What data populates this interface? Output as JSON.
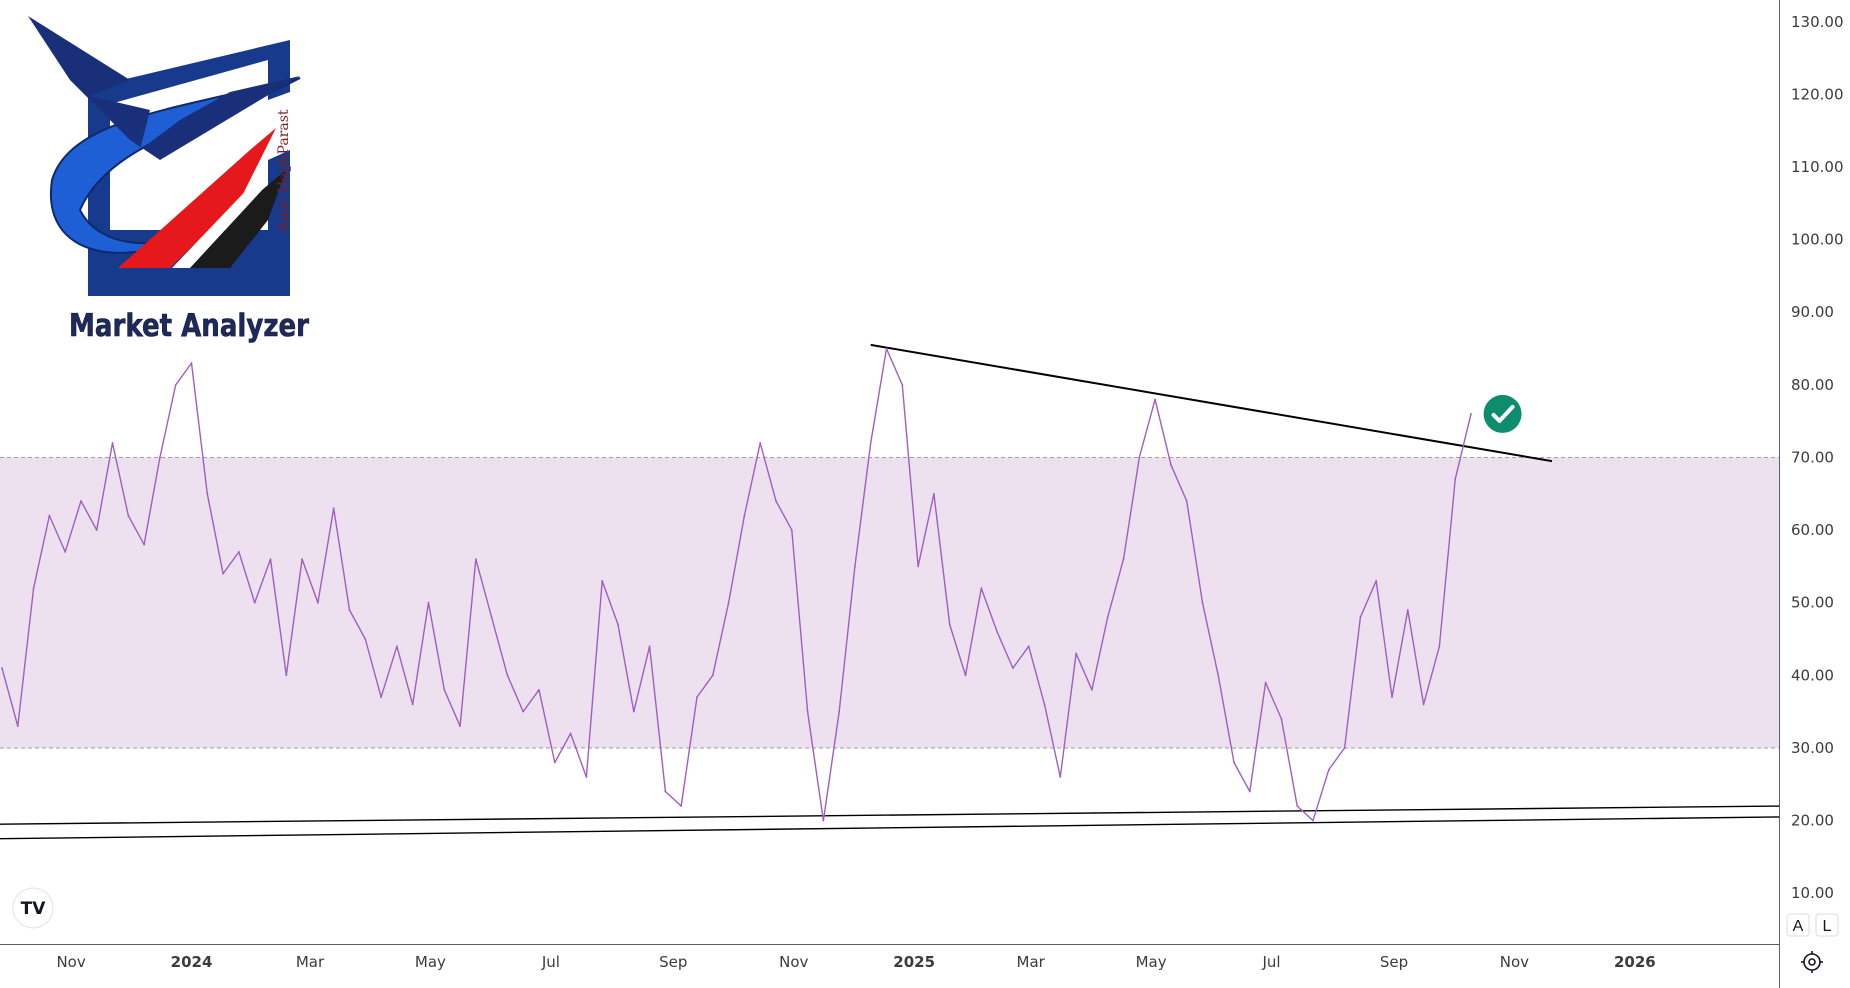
{
  "logo": {
    "title": "Market Analyzer",
    "signature": "Amir HaghParast"
  },
  "brand_mark": "TV",
  "scale_buttons": {
    "auto": "A",
    "log": "L"
  },
  "colors": {
    "rsi_line": "#a05fbf",
    "band_fill": "#ede0ef",
    "band_border": "#9e9e9e",
    "trendline": "#000000",
    "check_badge": "#0e8c6e",
    "axis_text": "#3b3b3b"
  },
  "icons": {
    "check_badge": "check-circle-icon",
    "settings": "gear-icon"
  },
  "chart_data": {
    "type": "line",
    "series": [
      {
        "x": [
          "2023-09-27",
          "2023-10-05",
          "2023-10-13",
          "2023-10-21",
          "2023-10-29",
          "2023-11-06",
          "2023-11-14",
          "2023-11-22",
          "2023-11-30",
          "2023-12-08",
          "2023-12-16",
          "2023-12-24",
          "2024-01-01",
          "2024-01-09",
          "2024-01-17",
          "2024-01-25",
          "2024-02-02",
          "2024-02-10",
          "2024-02-18",
          "2024-02-26",
          "2024-03-05",
          "2024-03-13",
          "2024-03-21",
          "2024-03-29",
          "2024-04-06",
          "2024-04-14",
          "2024-04-22",
          "2024-04-30",
          "2024-05-08",
          "2024-05-16",
          "2024-05-24",
          "2024-06-01",
          "2024-06-09",
          "2024-06-17",
          "2024-06-25",
          "2024-07-03",
          "2024-07-11",
          "2024-07-19",
          "2024-07-27",
          "2024-08-04",
          "2024-08-12",
          "2024-08-20",
          "2024-08-28",
          "2024-09-05",
          "2024-09-13",
          "2024-09-21",
          "2024-09-29",
          "2024-10-07",
          "2024-10-15",
          "2024-10-23",
          "2024-10-31",
          "2024-11-08",
          "2024-11-16",
          "2024-11-24",
          "2024-12-02",
          "2024-12-10",
          "2024-12-18",
          "2024-12-26",
          "2025-01-03",
          "2025-01-11",
          "2025-01-19",
          "2025-01-27",
          "2025-02-04",
          "2025-02-12",
          "2025-02-20",
          "2025-02-28",
          "2025-03-08",
          "2025-03-16",
          "2025-03-24",
          "2025-04-01",
          "2025-04-09",
          "2025-04-17",
          "2025-04-25",
          "2025-05-03",
          "2025-05-11",
          "2025-05-19",
          "2025-05-27",
          "2025-06-04",
          "2025-06-12",
          "2025-06-20",
          "2025-06-28",
          "2025-07-06",
          "2025-07-14",
          "2025-07-22",
          "2025-07-30",
          "2025-08-07",
          "2025-08-15",
          "2025-08-23",
          "2025-08-31",
          "2025-09-08",
          "2025-09-16",
          "2025-09-24",
          "2025-10-02",
          "2025-10-10"
        ],
        "values": [
          41,
          33,
          52,
          62,
          57,
          64,
          60,
          72,
          62,
          58,
          70,
          80,
          83,
          65,
          54,
          57,
          50,
          56,
          40,
          56,
          50,
          63,
          49,
          45,
          37,
          44,
          36,
          50,
          38,
          33,
          56,
          48,
          40,
          35,
          38,
          28,
          32,
          26,
          53,
          47,
          35,
          44,
          24,
          22,
          37,
          40,
          50,
          62,
          72,
          64,
          60,
          35,
          20,
          35,
          55,
          72,
          85,
          80,
          55,
          65,
          47,
          40,
          52,
          46,
          41,
          44,
          36,
          26,
          43,
          38,
          48,
          56,
          70,
          78,
          69,
          64,
          50,
          40,
          28,
          24,
          39,
          34,
          22,
          20,
          27,
          30,
          48,
          53,
          37,
          49,
          36,
          44,
          67,
          76
        ]
      }
    ],
    "y_ticks": [
      "10.00",
      "20.00",
      "30.00",
      "40.00",
      "50.00",
      "60.00",
      "70.00",
      "80.00",
      "90.00",
      "100.00",
      "110.00",
      "120.00",
      "130.00"
    ],
    "x_ticks": [
      {
        "label": "Nov",
        "date": "2023-11-01",
        "bold": false
      },
      {
        "label": "2024",
        "date": "2024-01-01",
        "bold": true
      },
      {
        "label": "Mar",
        "date": "2024-03-01",
        "bold": false
      },
      {
        "label": "May",
        "date": "2024-05-01",
        "bold": false
      },
      {
        "label": "Jul",
        "date": "2024-07-01",
        "bold": false
      },
      {
        "label": "Sep",
        "date": "2024-09-01",
        "bold": false
      },
      {
        "label": "Nov",
        "date": "2024-11-01",
        "bold": false
      },
      {
        "label": "2025",
        "date": "2025-01-01",
        "bold": true
      },
      {
        "label": "Mar",
        "date": "2025-03-01",
        "bold": false
      },
      {
        "label": "May",
        "date": "2025-05-01",
        "bold": false
      },
      {
        "label": "Jul",
        "date": "2025-07-01",
        "bold": false
      },
      {
        "label": "Sep",
        "date": "2025-09-01",
        "bold": false
      },
      {
        "label": "Nov",
        "date": "2025-11-01",
        "bold": false
      },
      {
        "label": "2026",
        "date": "2026-01-01",
        "bold": true
      }
    ],
    "ylim": [
      3,
      133
    ],
    "xlim": [
      "2023-09-26",
      "2026-03-15"
    ],
    "bands": [
      {
        "from": 30,
        "to": 70
      }
    ],
    "trendlines": [
      {
        "from": {
          "x": "2024-12-10",
          "y": 85.5
        },
        "to": {
          "x": "2025-11-20",
          "y": 69.5
        }
      },
      {
        "from": {
          "x": "2023-09-26",
          "y": 19.5
        },
        "to": {
          "x": "2026-03-15",
          "y": 22
        }
      },
      {
        "from": {
          "x": "2023-09-26",
          "y": 17.5
        },
        "to": {
          "x": "2026-03-15",
          "y": 20.5
        }
      }
    ],
    "markers": [
      {
        "type": "check",
        "x": "2025-10-26",
        "y": 76
      }
    ],
    "grid": false,
    "legend": "none"
  }
}
